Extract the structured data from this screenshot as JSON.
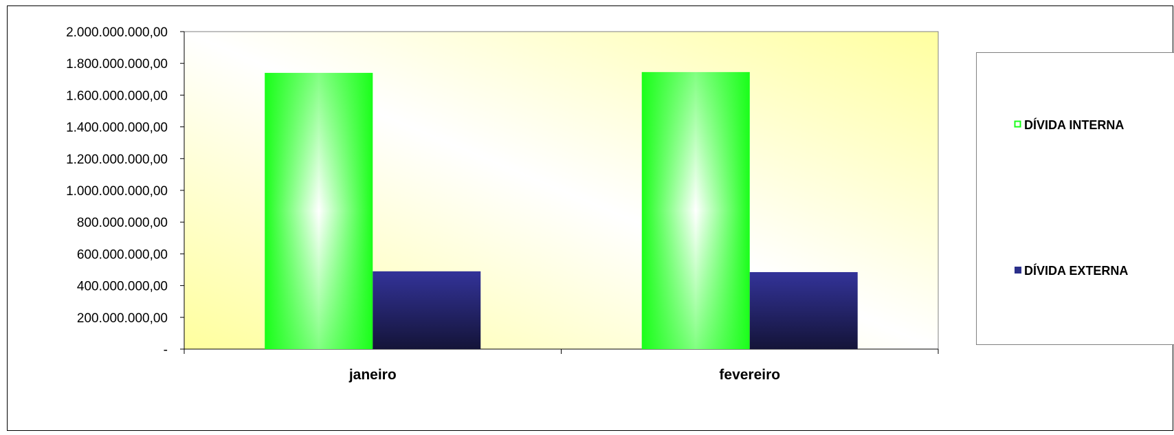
{
  "chart_data": {
    "type": "bar",
    "title": "",
    "xlabel": "",
    "ylabel": "",
    "categories": [
      "janeiro",
      "fevereiro"
    ],
    "series": [
      {
        "name": "DÍVIDA INTERNA",
        "values": [
          1740000000,
          1745000000
        ],
        "color": "#1aff1a"
      },
      {
        "name": "DÍVIDA EXTERNA",
        "values": [
          490000000,
          485000000
        ],
        "color": "#2b2f8a"
      }
    ],
    "ylim": [
      0,
      2000000000
    ],
    "yticks": [
      0,
      200000000,
      400000000,
      600000000,
      800000000,
      1000000000,
      1200000000,
      1400000000,
      1600000000,
      1800000000,
      2000000000
    ],
    "ytick_labels": [
      "-",
      "200.000.000,00",
      "400.000.000,00",
      "600.000.000,00",
      "800.000.000,00",
      "1.000.000.000,00",
      "1.200.000.000,00",
      "1.400.000.000,00",
      "1.600.000.000,00",
      "1.800.000.000,00",
      "2.000.000.000,00"
    ],
    "grid": false,
    "legend_position": "right",
    "plot_background": [
      "#ffffa0",
      "#ffffff"
    ]
  }
}
